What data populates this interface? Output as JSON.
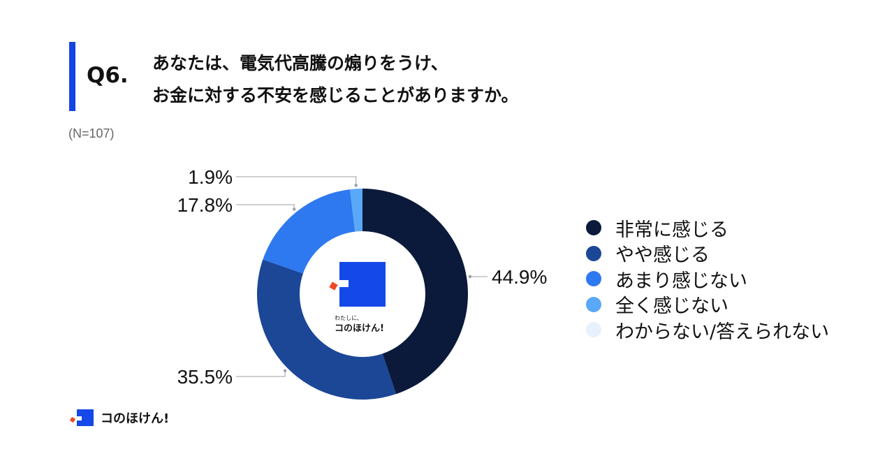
{
  "header": {
    "q_number": "Q6.",
    "title_line1": "あなたは、電気代高騰の煽りをうけ、",
    "title_line2": "お金に対する不安を感じることがありますか。",
    "sample_size": "(N=107)"
  },
  "center_logo": {
    "tagline": "わたしに、",
    "brand": "コのほけん!"
  },
  "footer": {
    "brand": "コのほけん!"
  },
  "colors": {
    "accent": "#1443e6",
    "logo_blue": "#1548e8",
    "logo_red": "#ee4a24"
  },
  "chart_data": {
    "type": "pie",
    "style": "donut",
    "legend_position": "right",
    "categories": [
      "非常に感じる",
      "やや感じる",
      "あまり感じない",
      "全く感じない",
      "わからない/答えられない"
    ],
    "values": [
      44.9,
      35.5,
      17.8,
      1.9,
      0.0
    ],
    "labels": [
      "44.9%",
      "35.5%",
      "17.8%",
      "1.9%",
      ""
    ],
    "colors": [
      "#0b1a3a",
      "#1c4797",
      "#2e78f0",
      "#5aa8f8",
      "#e6f1fd"
    ]
  }
}
